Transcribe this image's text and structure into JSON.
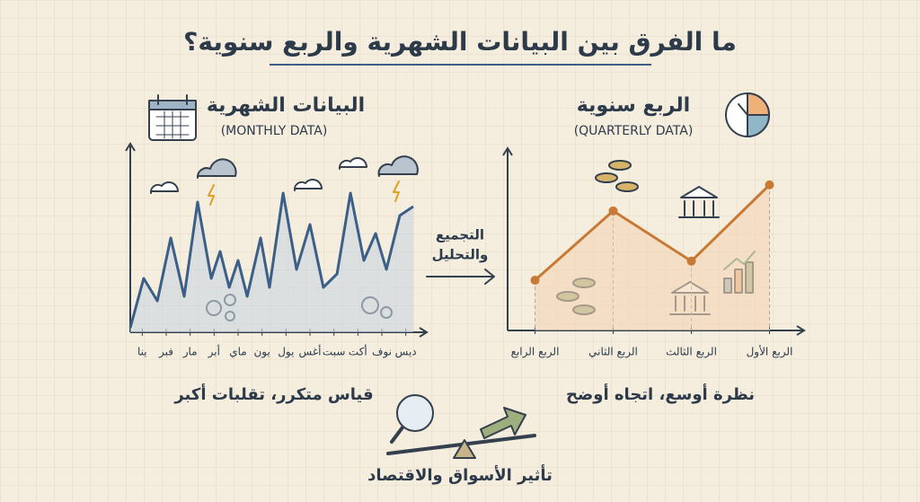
{
  "title": "ما الفرق بين البيانات الشهرية والربع سنوية؟",
  "arrow_label": [
    "التجميع",
    "والتحليل"
  ],
  "bottom_label": "تأثير الأسواق والاقتصاد",
  "chart_data": [
    {
      "type": "line",
      "title": "البيانات الشهرية",
      "subtitle": "(MONTHLY DATA)",
      "caption": "قياس متكرر، تقلبات أكبر",
      "color": "#3b5f86",
      "fill": "#c9d6e0",
      "x": [
        0,
        0.56,
        1.13,
        1.69,
        2.25,
        2.81,
        3.38,
        3.75,
        4.13,
        4.5,
        4.88,
        5.44,
        5.81,
        6.38,
        6.94,
        7.5,
        8.06,
        8.63,
        9.19,
        9.75,
        10.24,
        10.69,
        11.25,
        11.81
      ],
      "values": [
        2.5,
        30,
        17.5,
        52.5,
        20,
        72.5,
        30,
        45,
        25,
        40,
        20,
        52.5,
        25,
        77.5,
        35,
        60,
        25,
        32.5,
        77.5,
        40,
        55,
        35,
        65,
        70
      ],
      "xlim": [
        0,
        12
      ],
      "ylim": [
        0,
        100
      ],
      "xticks": [
        {
          "value": 0.5,
          "label": "ينا"
        },
        {
          "value": 1.5,
          "label": "فبر"
        },
        {
          "value": 2.5,
          "label": "مار"
        },
        {
          "value": 3.5,
          "label": "أبر"
        },
        {
          "value": 4.5,
          "label": "ماي"
        },
        {
          "value": 5.5,
          "label": "يون"
        },
        {
          "value": 6.5,
          "label": "يول"
        },
        {
          "value": 7.5,
          "label": "أغس"
        },
        {
          "value": 8.5,
          "label": "سبت"
        },
        {
          "value": 9.5,
          "label": "أكت"
        },
        {
          "value": 10.5,
          "label": "نوف"
        },
        {
          "value": 11.5,
          "label": "ديس"
        }
      ]
    },
    {
      "type": "line",
      "title": "الربع سنوية",
      "subtitle": "(QUARTERLY DATA)",
      "caption": "نظرة أوسع، اتجاه أوضح",
      "color": "#c87a35",
      "fill": "#f4d6b6",
      "categories": [
        "الربع الرابع",
        "الربع الثاني",
        "الربع الثالث",
        "الربع الأول"
      ],
      "values": [
        29,
        69,
        40,
        84
      ],
      "ylim": [
        0,
        100
      ]
    }
  ]
}
